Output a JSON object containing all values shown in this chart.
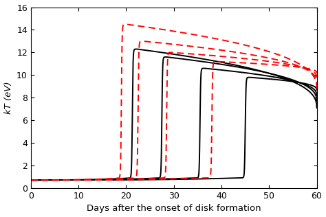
{
  "xlabel": "Days after the onset of disk formation",
  "ylabel": "kT (eV)",
  "xlim": [
    0,
    60
  ],
  "ylim": [
    0,
    16
  ],
  "xticks": [
    0,
    10,
    20,
    30,
    40,
    50,
    60
  ],
  "yticks": [
    0,
    2,
    4,
    6,
    8,
    10,
    12,
    14,
    16
  ],
  "black_curves": [
    {
      "peak_day": 22.3,
      "peak_val": 12.3,
      "end_val": 7.1,
      "steepness": 0.6
    },
    {
      "peak_day": 28.5,
      "peak_val": 11.6,
      "end_val": 7.7,
      "steepness": 0.6
    },
    {
      "peak_day": 36.5,
      "peak_val": 10.6,
      "end_val": 8.2,
      "steepness": 0.6
    },
    {
      "peak_day": 46.0,
      "peak_val": 9.8,
      "end_val": 8.7,
      "steepness": 0.6
    }
  ],
  "red_curves": [
    {
      "peak_day": 20.0,
      "peak_val": 14.5,
      "end_val": 8.8,
      "steepness": 0.6
    },
    {
      "peak_day": 23.5,
      "peak_val": 13.0,
      "end_val": 9.3,
      "steepness": 0.6
    },
    {
      "peak_day": 29.5,
      "peak_val": 12.0,
      "end_val": 9.8,
      "steepness": 0.6
    },
    {
      "peak_day": 39.0,
      "peak_val": 11.2,
      "end_val": 10.2,
      "steepness": 0.6
    }
  ],
  "start_val": 0.72,
  "end_day": 60
}
